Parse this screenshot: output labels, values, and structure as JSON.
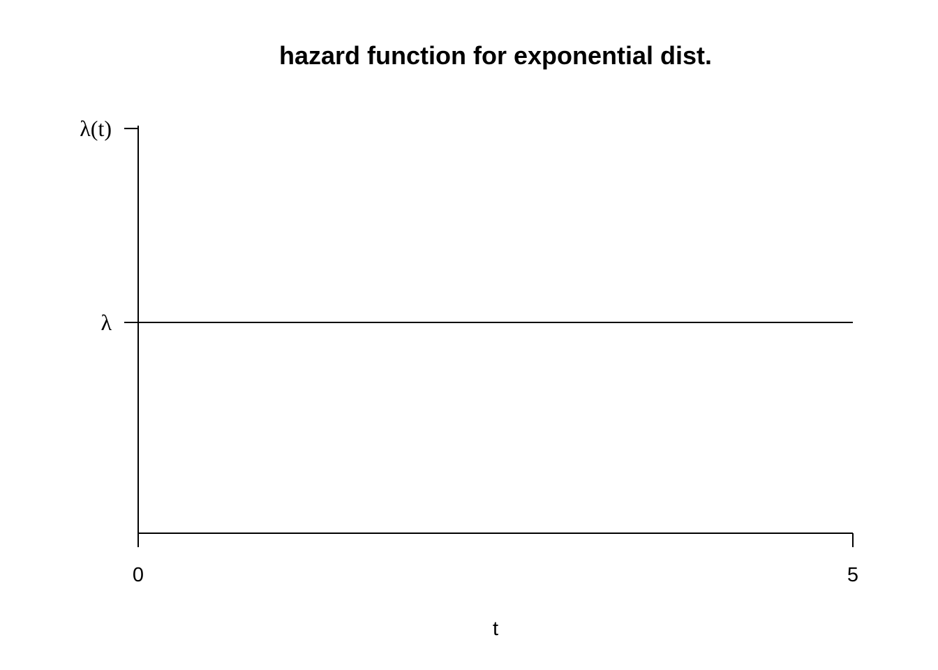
{
  "chart_data": {
    "type": "line",
    "title": "hazard function for exponential dist.",
    "xlabel": "t",
    "ylabel": "",
    "xlim": [
      0,
      5
    ],
    "ylim": [
      0,
      1
    ],
    "x_ticks": [
      {
        "value": 0,
        "label": "0"
      },
      {
        "value": 5,
        "label": "5"
      }
    ],
    "y_ticks": [
      {
        "value": 0.5,
        "label": "λ"
      },
      {
        "value": 0.96,
        "label": "λ(t)"
      }
    ],
    "series": [
      {
        "x": [
          0,
          5
        ],
        "y": [
          0.5,
          0.5
        ],
        "color": "#000000"
      }
    ],
    "grid": false,
    "legend": false
  }
}
